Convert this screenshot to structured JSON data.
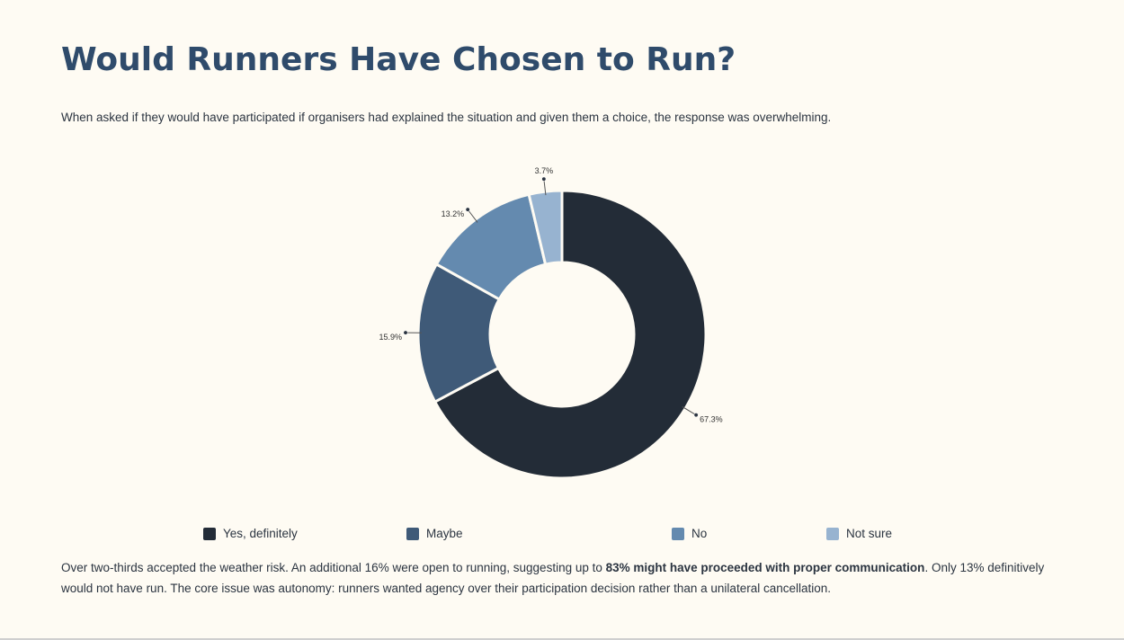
{
  "title": "Would Runners Have Chosen to Run?",
  "subtitle": "When asked if they would have participated if organisers had explained the situation and given them a choice, the response was overwhelming.",
  "chart_data": {
    "type": "pie",
    "donut": true,
    "categories": [
      "Yes, definitely",
      "Maybe",
      "No",
      "Not sure"
    ],
    "values": [
      67.3,
      15.9,
      13.2,
      3.7
    ],
    "labels": [
      "67.3%",
      "15.9%",
      "13.2%",
      "3.7%"
    ],
    "colors": [
      "#232c37",
      "#3f5a78",
      "#648aaf",
      "#97b3d0"
    ],
    "legend_position": "bottom"
  },
  "conclusion": {
    "part1": "Over two-thirds accepted the weather risk. An additional 16% were open to running, suggesting up to ",
    "bold": "83% might have proceeded with proper communication",
    "part2": ". Only 13% definitively would not have run. The core issue was autonomy: runners wanted agency over their participation decision rather than a unilateral cancellation."
  }
}
